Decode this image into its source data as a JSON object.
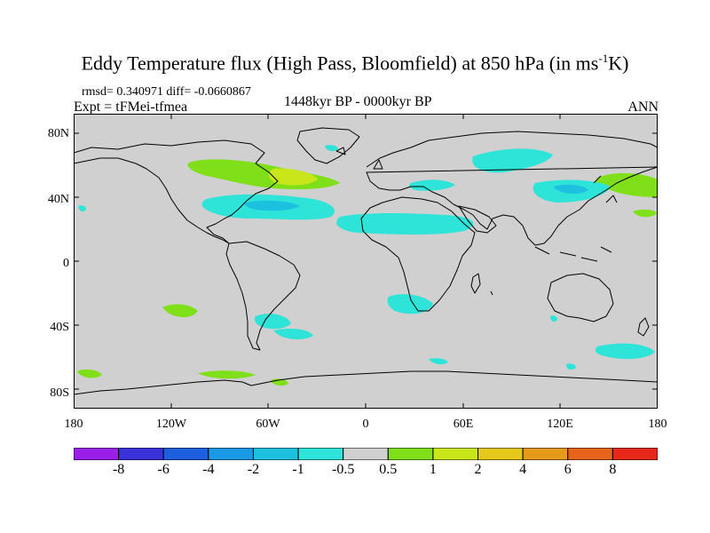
{
  "title": {
    "main": "Eddy Temperature flux (High Pass, Bloomfield) at 850 hPa (in ms",
    "sup": "-1",
    "end": "K)"
  },
  "stats": "rmsd= 0.340971 diff= -0.0660867",
  "experiment": "Expt = tFMei-tfmea",
  "period": "1448kyr BP - 0000kyr BP",
  "season": "ANN",
  "lat_labels": [
    "80N",
    "40N",
    "0",
    "40S",
    "80S"
  ],
  "lon_labels": [
    "180",
    "120W",
    "60W",
    "0",
    "60E",
    "120E",
    "180"
  ],
  "colorbar": {
    "labels": [
      "-8",
      "-6",
      "-4",
      "-2",
      "-1",
      "-0.5",
      "0.5",
      "1",
      "2",
      "4",
      "6",
      "8"
    ],
    "colors": [
      "#9b1fe8",
      "#3a32d8",
      "#1e5fe0",
      "#1a9ae6",
      "#1ec0e0",
      "#2ee4d8",
      "#d0d0d0",
      "#7fe01a",
      "#c8e61a",
      "#e6c81a",
      "#e69a1a",
      "#e6641a",
      "#e6281a"
    ]
  },
  "colors": {
    "land_bg": "#d0d0d0",
    "positive": "#7fe01a",
    "positive_strong": "#c8e61a",
    "negative": "#2ee4d8",
    "negative_strong": "#1ec0e0"
  }
}
